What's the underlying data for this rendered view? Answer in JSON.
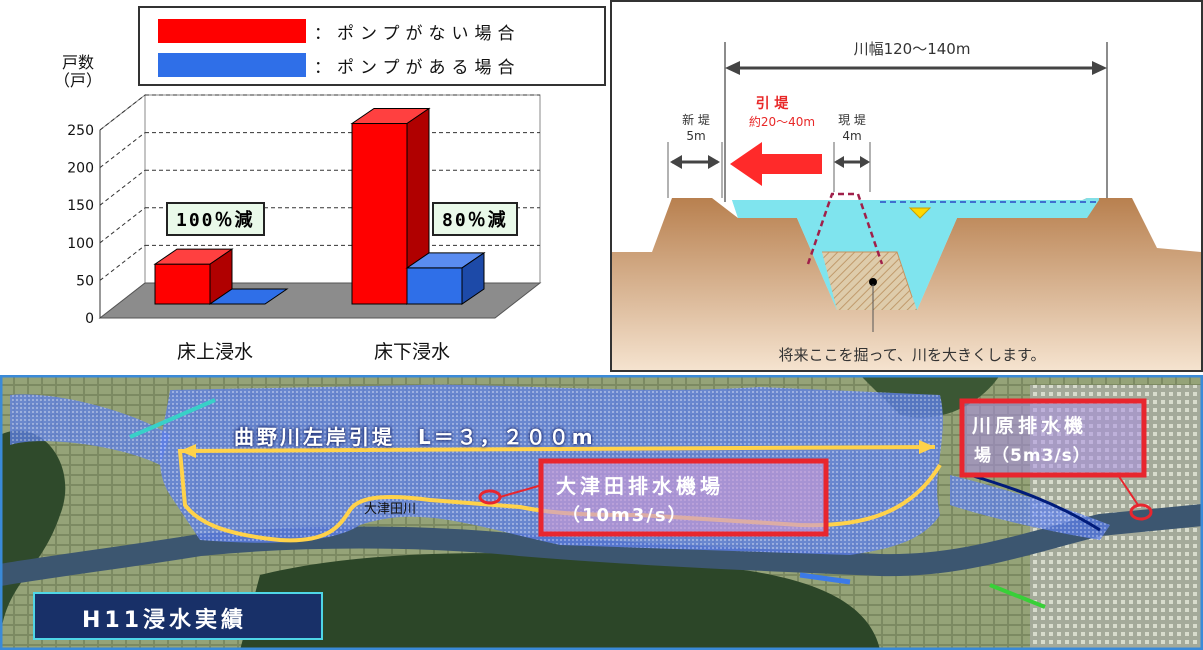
{
  "chart_data": {
    "type": "bar",
    "ylabel": "戸数\n（戸）",
    "ylim": [
      0,
      250
    ],
    "yticks": [
      0,
      50,
      100,
      150,
      200,
      250
    ],
    "categories": [
      "床上浸水",
      "床下浸水"
    ],
    "series": [
      {
        "name": "：ポンプがない場合",
        "color": "#ff0000",
        "values": [
          53,
          240
        ]
      },
      {
        "name": "：ポンプがある場合",
        "color": "#2f6fe8",
        "values": [
          0,
          48
        ]
      }
    ],
    "annotations": [
      "100％減",
      "80％減"
    ],
    "grid": true,
    "legend_position": "top"
  },
  "cross_section": {
    "river_width": "川幅120～140m",
    "new_levee_title": "新 堤",
    "new_levee_width": "5m",
    "retreat_title": "引 堤",
    "retreat_range": "約20～40m",
    "old_levee_title": "現 堤",
    "old_levee_width": "4m",
    "note": "将来ここを掘って、川を大きくします。",
    "colors": {
      "earth": "#c8935e",
      "earth_light": "#e8c9a4",
      "water": "#7fe4ee",
      "arrow": "#ff2a2a",
      "old_levee": "#a0204a"
    }
  },
  "map": {
    "levee_label": "曲野川左岸引堤　L＝３，２００m",
    "station1": "大津田排水機場",
    "station1_flow": "（10m3/s）",
    "station2": "川原排水機",
    "station2_flow": "場（5m3/s）",
    "river_label": "大津田川",
    "flood_label": "H11浸水実績",
    "colors": {
      "flood": "#6a8cf0",
      "levee": "#ffd24a",
      "box": "#e8262e"
    }
  }
}
